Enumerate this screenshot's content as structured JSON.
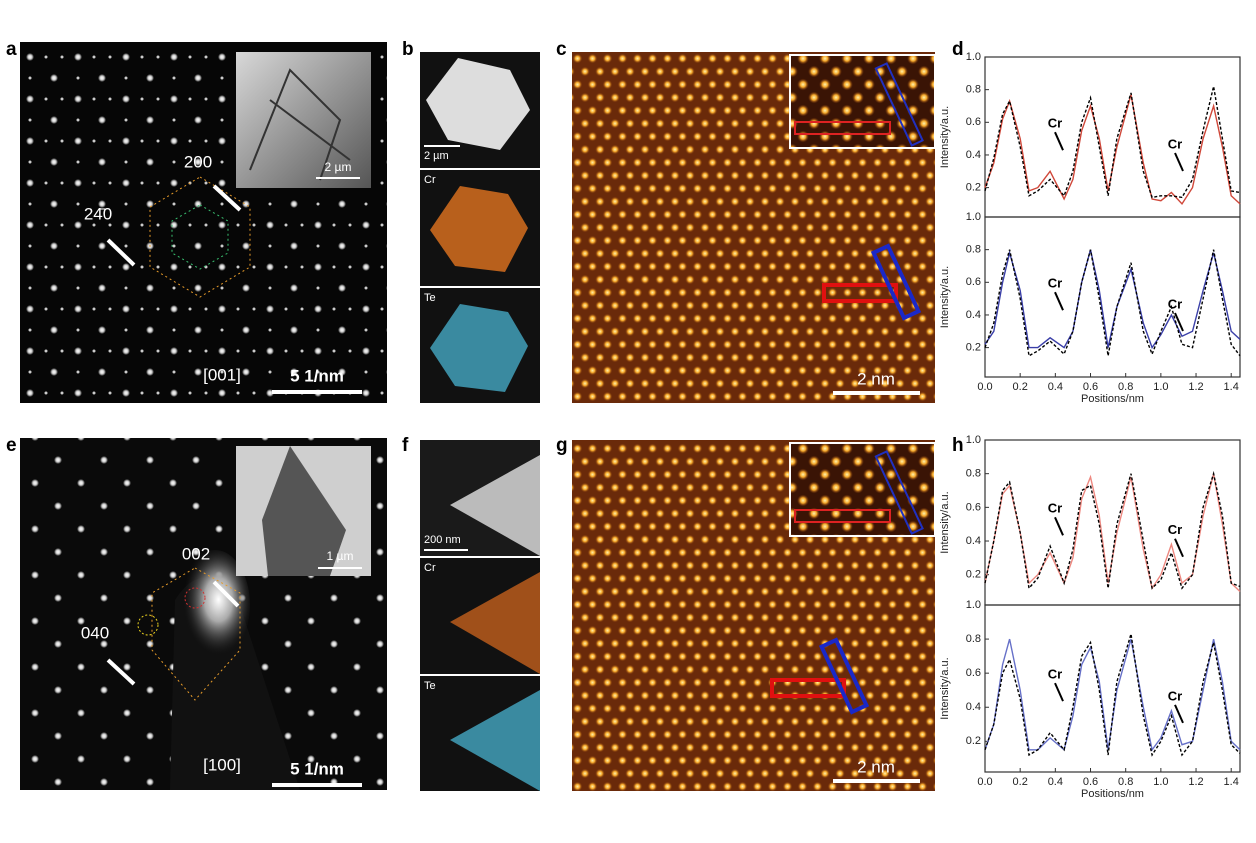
{
  "figure": {
    "a": {
      "label": "a",
      "spot1": "200",
      "spot2": "24̄0",
      "zone": "[001]",
      "scale": "5 1/nm",
      "inset_scale": "2 µm"
    },
    "b": {
      "label": "b",
      "scale": "2 µm",
      "map1": "Cr",
      "map2": "Te"
    },
    "c": {
      "label": "c",
      "scale": "2 nm"
    },
    "d": {
      "label": "d"
    },
    "e": {
      "label": "e",
      "spot1": "002",
      "spot2": "040",
      "zone": "[100]",
      "scale": "5 1/nm",
      "inset_scale": "1 µm"
    },
    "f": {
      "label": "f",
      "scale": "200 nm",
      "map1": "Cr",
      "map2": "Te"
    },
    "g": {
      "label": "g",
      "scale": "2 nm"
    },
    "h": {
      "label": "h"
    }
  },
  "chart_data": [
    {
      "type": "line",
      "ylabel": "Intensity/a.u.",
      "annotations": [
        "Cr",
        "Cr"
      ],
      "xlim": [
        0,
        1.45
      ],
      "ylim": [
        0.02,
        1.0
      ],
      "yticks": [
        0.2,
        0.4,
        0.6,
        0.8,
        {
          "value": 1,
          "label": "1.0"
        }
      ],
      "x": [
        0,
        0.05,
        0.1,
        0.14,
        0.2,
        0.25,
        0.3,
        0.37,
        0.45,
        0.5,
        0.55,
        0.6,
        0.65,
        0.7,
        0.75,
        0.83,
        0.9,
        0.95,
        1.0,
        1.06,
        1.12,
        1.18,
        1.24,
        1.3,
        1.35,
        1.4,
        1.45
      ],
      "series": [
        {
          "color": "#d0483a",
          "style": "solid",
          "values": [
            0.2,
            0.35,
            0.62,
            0.73,
            0.5,
            0.18,
            0.2,
            0.3,
            0.13,
            0.25,
            0.55,
            0.7,
            0.5,
            0.18,
            0.45,
            0.77,
            0.35,
            0.13,
            0.12,
            0.17,
            0.1,
            0.2,
            0.5,
            0.7,
            0.45,
            0.15,
            0.1
          ]
        },
        {
          "color": "#000000",
          "style": "dashed",
          "values": [
            0.18,
            0.38,
            0.65,
            0.73,
            0.45,
            0.15,
            0.18,
            0.25,
            0.15,
            0.3,
            0.6,
            0.75,
            0.45,
            0.15,
            0.5,
            0.78,
            0.3,
            0.14,
            0.15,
            0.15,
            0.14,
            0.25,
            0.55,
            0.82,
            0.5,
            0.18,
            0.17
          ]
        }
      ]
    },
    {
      "type": "line",
      "ylabel": "Intensity/a.u.",
      "xlabel": "Positions/nm",
      "annotations": [
        "Cr",
        "Cr"
      ],
      "xlim": [
        0,
        1.45
      ],
      "ylim": [
        0.02,
        1.0
      ],
      "yticks": [
        0.2,
        0.4,
        0.6,
        0.8,
        {
          "value": 1,
          "label": "1.0"
        }
      ],
      "xticks": [
        {
          "value": 0,
          "label": "0.0"
        },
        0.2,
        0.4,
        0.6,
        0.8,
        {
          "value": 1,
          "label": "1.0"
        },
        1.2,
        1.4
      ],
      "x": [
        0,
        0.05,
        0.1,
        0.14,
        0.2,
        0.25,
        0.3,
        0.37,
        0.45,
        0.5,
        0.55,
        0.6,
        0.65,
        0.7,
        0.75,
        0.83,
        0.9,
        0.95,
        1.0,
        1.06,
        1.12,
        1.18,
        1.24,
        1.3,
        1.35,
        1.4,
        1.45
      ],
      "series": [
        {
          "color": "#3a3fa8",
          "style": "solid",
          "values": [
            0.22,
            0.3,
            0.6,
            0.78,
            0.55,
            0.2,
            0.2,
            0.26,
            0.2,
            0.3,
            0.6,
            0.8,
            0.55,
            0.2,
            0.45,
            0.68,
            0.35,
            0.2,
            0.28,
            0.4,
            0.27,
            0.3,
            0.55,
            0.78,
            0.55,
            0.3,
            0.25
          ]
        },
        {
          "color": "#000000",
          "style": "dashed",
          "values": [
            0.2,
            0.35,
            0.65,
            0.8,
            0.5,
            0.15,
            0.18,
            0.24,
            0.16,
            0.3,
            0.6,
            0.8,
            0.5,
            0.15,
            0.45,
            0.72,
            0.3,
            0.16,
            0.3,
            0.45,
            0.22,
            0.2,
            0.5,
            0.8,
            0.5,
            0.22,
            0.15
          ]
        }
      ]
    },
    {
      "type": "line",
      "ylabel": "Intensity/a.u.",
      "annotations": [
        "Cr",
        "Cr"
      ],
      "xlim": [
        0,
        1.45
      ],
      "ylim": [
        0.02,
        1.0
      ],
      "yticks": [
        0.2,
        0.4,
        0.6,
        0.8,
        {
          "value": 1,
          "label": "1.0"
        }
      ],
      "x": [
        0,
        0.05,
        0.1,
        0.14,
        0.2,
        0.25,
        0.3,
        0.37,
        0.45,
        0.5,
        0.55,
        0.6,
        0.65,
        0.7,
        0.75,
        0.83,
        0.9,
        0.95,
        1.0,
        1.06,
        1.12,
        1.18,
        1.24,
        1.3,
        1.35,
        1.4,
        1.45
      ],
      "series": [
        {
          "color": "#ee8880",
          "style": "solid",
          "values": [
            0.15,
            0.4,
            0.68,
            0.73,
            0.45,
            0.15,
            0.2,
            0.33,
            0.15,
            0.3,
            0.65,
            0.78,
            0.55,
            0.15,
            0.45,
            0.78,
            0.35,
            0.12,
            0.2,
            0.38,
            0.15,
            0.2,
            0.55,
            0.8,
            0.5,
            0.15,
            0.1
          ]
        },
        {
          "color": "#000000",
          "style": "dashed",
          "values": [
            0.15,
            0.4,
            0.7,
            0.75,
            0.45,
            0.12,
            0.18,
            0.37,
            0.15,
            0.35,
            0.7,
            0.73,
            0.5,
            0.12,
            0.5,
            0.8,
            0.4,
            0.12,
            0.17,
            0.33,
            0.12,
            0.2,
            0.6,
            0.8,
            0.55,
            0.15,
            0.13
          ]
        }
      ]
    },
    {
      "type": "line",
      "ylabel": "Intensity/a.u.",
      "xlabel": "Positions/nm",
      "annotations": [
        "Cr",
        "Cr"
      ],
      "xlim": [
        0,
        1.45
      ],
      "ylim": [
        0.02,
        1.0
      ],
      "yticks": [
        0.2,
        0.4,
        0.6,
        0.8,
        {
          "value": 1,
          "label": "1.0"
        }
      ],
      "xticks": [
        {
          "value": 0,
          "label": "0.0"
        },
        0.2,
        0.4,
        0.6,
        0.8,
        {
          "value": 1,
          "label": "1.0"
        },
        1.2,
        1.4
      ],
      "x": [
        0,
        0.05,
        0.1,
        0.14,
        0.2,
        0.25,
        0.3,
        0.37,
        0.45,
        0.5,
        0.55,
        0.6,
        0.65,
        0.7,
        0.75,
        0.83,
        0.9,
        0.95,
        1.0,
        1.06,
        1.12,
        1.18,
        1.24,
        1.3,
        1.35,
        1.4,
        1.45
      ],
      "series": [
        {
          "color": "#6670c8",
          "style": "solid",
          "values": [
            0.15,
            0.3,
            0.65,
            0.8,
            0.5,
            0.15,
            0.15,
            0.22,
            0.15,
            0.35,
            0.65,
            0.75,
            0.55,
            0.15,
            0.5,
            0.8,
            0.4,
            0.15,
            0.22,
            0.38,
            0.18,
            0.2,
            0.5,
            0.8,
            0.55,
            0.2,
            0.15
          ]
        },
        {
          "color": "#000000",
          "style": "dashed",
          "values": [
            0.15,
            0.3,
            0.6,
            0.68,
            0.45,
            0.12,
            0.15,
            0.25,
            0.15,
            0.4,
            0.7,
            0.78,
            0.5,
            0.12,
            0.55,
            0.83,
            0.35,
            0.12,
            0.2,
            0.35,
            0.12,
            0.2,
            0.55,
            0.78,
            0.5,
            0.18,
            0.13
          ]
        }
      ]
    }
  ]
}
